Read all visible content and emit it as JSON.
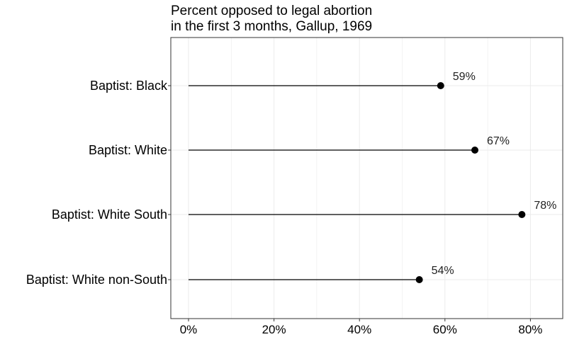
{
  "chart_data": {
    "type": "lollipop",
    "title_lines": [
      "Percent opposed to legal abortion",
      "in the first 3 months, Gallup, 1969"
    ],
    "categories": [
      "Baptist: Black",
      "Baptist: White",
      "Baptist: White South",
      "Baptist: White non-South"
    ],
    "values": [
      59,
      67,
      78,
      54
    ],
    "value_labels": [
      "59%",
      "67%",
      "78%",
      "54%"
    ],
    "xlim": [
      0,
      80
    ],
    "xticks": [
      0,
      20,
      40,
      60,
      80
    ],
    "xtick_labels": [
      "0%",
      "20%",
      "40%",
      "60%",
      "80%"
    ],
    "grid": true,
    "legend": "none",
    "colors": {
      "line": "#000000",
      "point": "#000000",
      "grid": "#ebebeb",
      "panel_border": "#333333"
    }
  }
}
